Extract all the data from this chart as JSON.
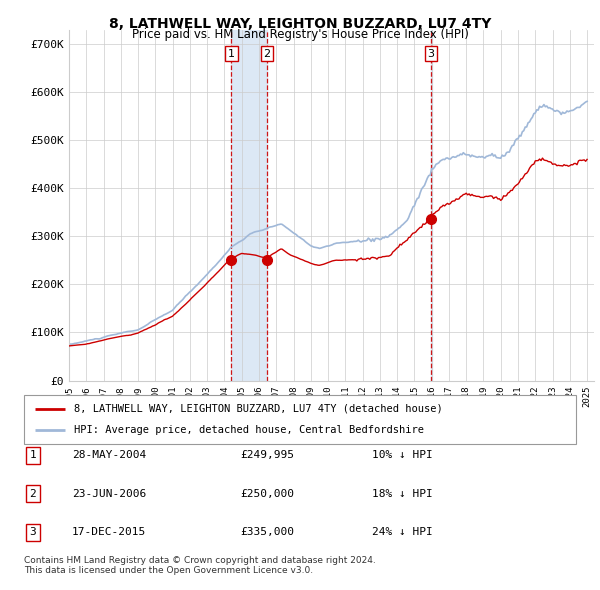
{
  "title": "8, LATHWELL WAY, LEIGHTON BUZZARD, LU7 4TY",
  "subtitle": "Price paid vs. HM Land Registry's House Price Index (HPI)",
  "ylabel_ticks": [
    "£0",
    "£100K",
    "£200K",
    "£300K",
    "£400K",
    "£500K",
    "£600K",
    "£700K"
  ],
  "ylim": [
    0,
    730000
  ],
  "ytick_vals": [
    0,
    100000,
    200000,
    300000,
    400000,
    500000,
    600000,
    700000
  ],
  "sale_year_floats": [
    2004.4,
    2006.47,
    2015.96
  ],
  "sale_prices": [
    249995,
    250000,
    335000
  ],
  "sale_labels": [
    "1",
    "2",
    "3"
  ],
  "legend_line1": "8, LATHWELL WAY, LEIGHTON BUZZARD, LU7 4TY (detached house)",
  "legend_line2": "HPI: Average price, detached house, Central Bedfordshire",
  "table_entries": [
    {
      "num": "1",
      "date": "28-MAY-2004",
      "price": "£249,995",
      "pct": "10% ↓ HPI"
    },
    {
      "num": "2",
      "date": "23-JUN-2006",
      "price": "£250,000",
      "pct": "18% ↓ HPI"
    },
    {
      "num": "3",
      "date": "17-DEC-2015",
      "price": "£335,000",
      "pct": "24% ↓ HPI"
    }
  ],
  "footnote1": "Contains HM Land Registry data © Crown copyright and database right 2024.",
  "footnote2": "This data is licensed under the Open Government Licence v3.0.",
  "hpi_color": "#a0b8d8",
  "price_color": "#cc0000",
  "vline_color": "#cc0000",
  "shade_color": "#dce8f5",
  "grid_color": "#cccccc",
  "bg_color": "#ffffff"
}
